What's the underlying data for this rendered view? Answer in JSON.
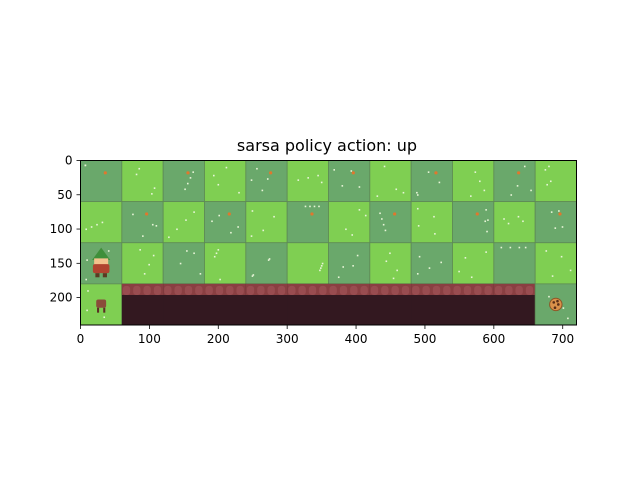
{
  "title": "sarsa policy action: up",
  "grid": {
    "cols": 12,
    "rows": 4,
    "cell_size": 60,
    "width": 720,
    "height": 240
  },
  "x_axis": {
    "ticks": [
      "0",
      "100",
      "200",
      "300",
      "400",
      "500",
      "600",
      "700"
    ],
    "values": [
      0,
      100,
      200,
      300,
      400,
      500,
      600,
      700
    ]
  },
  "y_axis": {
    "ticks": [
      "0",
      "50",
      "100",
      "150",
      "200"
    ],
    "values": [
      0,
      50,
      100,
      150,
      200
    ]
  },
  "environment": {
    "name": "CliffWalking",
    "agent": {
      "row": 2,
      "col": 0,
      "sprite": "elf-agent-icon"
    },
    "start": {
      "row": 3,
      "col": 0,
      "sprite": "stool-icon"
    },
    "goal": {
      "row": 3,
      "col": 11,
      "sprite": "cookie-icon"
    },
    "cliff": {
      "row": 3,
      "col_start": 1,
      "col_end": 10
    }
  },
  "colors": {
    "grass_light": "#7fcf52",
    "grass_dark": "#6aa86b",
    "cliff_top": "#8a3f42",
    "cliff_body": "#331820",
    "tile_border": "#5e8a55"
  }
}
